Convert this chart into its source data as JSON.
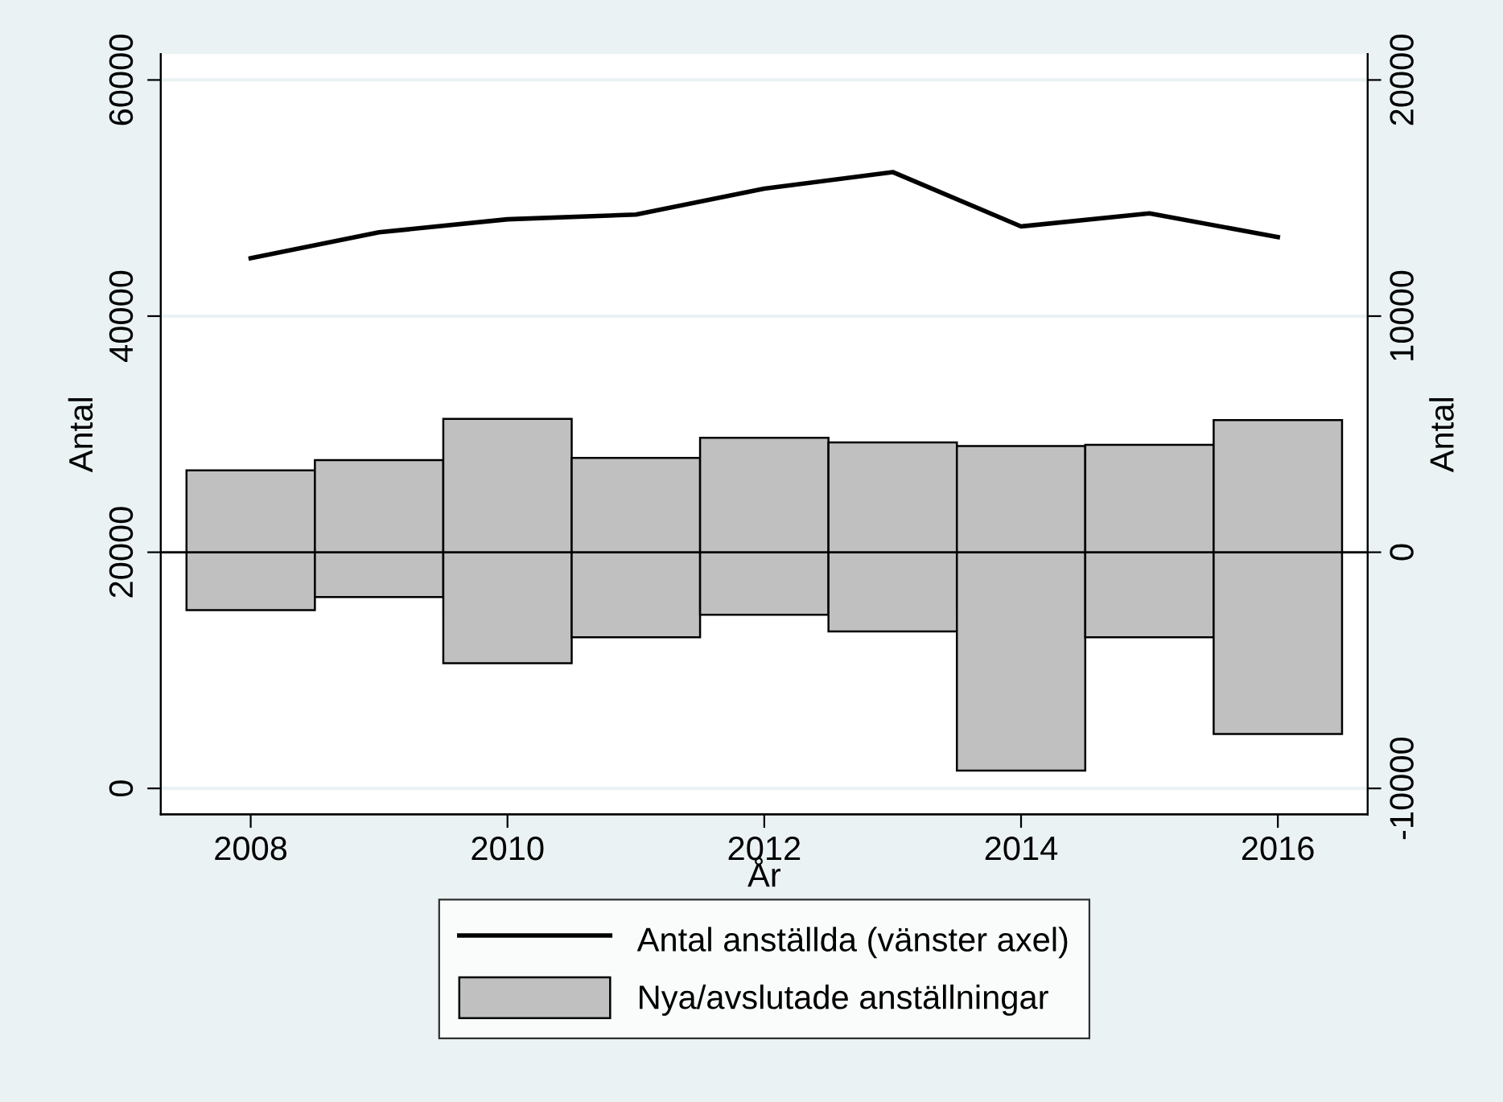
{
  "chart_data": {
    "type": "line",
    "xlabel": "År",
    "ylabel": "Antal",
    "y2label": "Antal",
    "x": [
      2008,
      2009,
      2010,
      2011,
      2012,
      2013,
      2014,
      2015,
      2016
    ],
    "series": [
      {
        "name": "Antal anställda (vänster axel)",
        "color": "#000000",
        "values": [
          44900,
          47100,
          48200,
          48600,
          50800,
          52200,
          47600,
          48700,
          46700
        ]
      },
      {
        "name": "Nya/avslutade anställningar",
        "type": "bar",
        "axis": "y2",
        "color": "#c0c0c0",
        "base": [
          -2450,
          -1900,
          -4700,
          -3600,
          -2650,
          -3350,
          -9250,
          -3600,
          -7700
        ],
        "values": [
          5920,
          5800,
          10350,
          7600,
          7500,
          8000,
          13750,
          8150,
          13300
        ]
      }
    ],
    "xlim": [
      2007.3,
      2016.7
    ],
    "xticks": [
      2008,
      2010,
      2012,
      2014,
      2016
    ],
    "ylim": [
      -2200,
      62200
    ],
    "yticks": [
      0,
      20000,
      40000,
      60000
    ],
    "y2lim": [
      -11100,
      21100
    ],
    "y2ticks": [
      -10000,
      0,
      10000,
      20000
    ],
    "ref_lines": [
      {
        "axis": "y2",
        "value": 0,
        "color": "#000000"
      }
    ],
    "grid": "y",
    "legend": "bottom"
  }
}
